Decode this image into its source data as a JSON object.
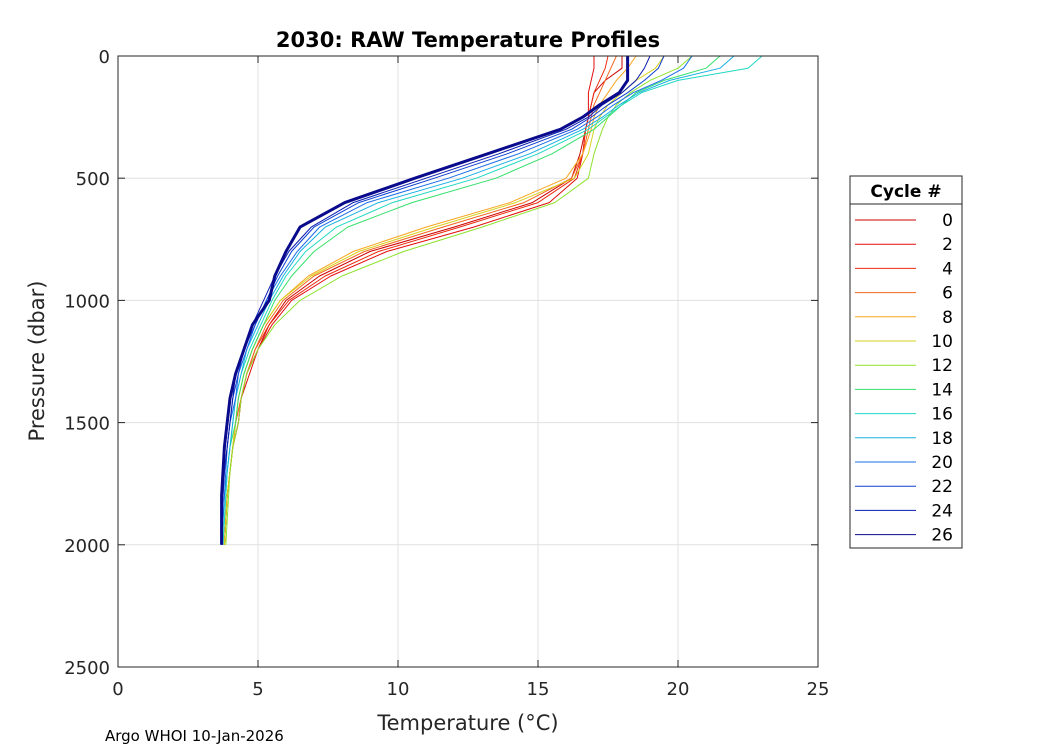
{
  "chart_data": {
    "type": "line",
    "title": "2030: RAW Temperature Profiles",
    "xlabel": "Temperature (",
    "xlabel_unit": "°C)",
    "ylabel": "Pressure (dbar)",
    "xlim": [
      0,
      25
    ],
    "ylim": [
      0,
      2500
    ],
    "y_reversed": true,
    "x_ticks": [
      0,
      5,
      10,
      15,
      20,
      25
    ],
    "y_ticks": [
      0,
      500,
      1000,
      1500,
      2000,
      2500
    ],
    "x_tick_labels": [
      "0",
      "5",
      "10",
      "15",
      "20",
      "25"
    ],
    "y_tick_labels": [
      "0",
      "500",
      "1000",
      "1500",
      "2000",
      "2500"
    ],
    "grid": true,
    "legend": {
      "title": "Cycle #",
      "placement": "right"
    },
    "footer": "Argo WHOI 10-Jan-2026",
    "pressure": [
      0,
      50,
      100,
      150,
      200,
      250,
      300,
      400,
      500,
      600,
      700,
      800,
      900,
      1000,
      1100,
      1200,
      1300,
      1400,
      1500,
      1600,
      1700,
      1800,
      1900,
      2000
    ],
    "series": [
      {
        "name": "0",
        "color": "#cc0000",
        "width": 1,
        "temps": [
          18.0,
          18.0,
          17.4,
          17.0,
          16.9,
          16.8,
          16.7,
          16.5,
          16.2,
          14.8,
          12.0,
          9.0,
          7.2,
          6.0,
          5.4,
          5.0,
          4.6,
          4.4,
          4.3,
          4.1,
          4.0,
          3.9,
          3.85,
          3.8
        ]
      },
      {
        "name": "2",
        "color": "#e30d0d",
        "width": 1,
        "temps": [
          17.0,
          17.0,
          16.9,
          16.8,
          16.8,
          16.8,
          16.7,
          16.6,
          16.4,
          15.4,
          12.7,
          9.6,
          7.6,
          6.2,
          5.5,
          5.0,
          4.7,
          4.4,
          4.3,
          4.1,
          4.0,
          3.9,
          3.85,
          3.8
        ]
      },
      {
        "name": "4",
        "color": "#ee2a0f",
        "width": 1,
        "temps": [
          17.5,
          17.4,
          17.2,
          17.0,
          16.9,
          16.8,
          16.7,
          16.6,
          16.3,
          15.0,
          12.2,
          9.3,
          7.4,
          6.1,
          5.4,
          4.9,
          4.6,
          4.4,
          4.2,
          4.1,
          4.0,
          3.9,
          3.85,
          3.8
        ]
      },
      {
        "name": "6",
        "color": "#f5651e",
        "width": 1,
        "temps": [
          17.8,
          17.6,
          17.4,
          17.2,
          17.0,
          16.9,
          16.8,
          16.6,
          16.2,
          14.5,
          11.6,
          8.8,
          7.0,
          5.9,
          5.3,
          4.9,
          4.6,
          4.4,
          4.2,
          4.1,
          4.0,
          3.9,
          3.85,
          3.8
        ]
      },
      {
        "name": "8",
        "color": "#f8a51f",
        "width": 1,
        "temps": [
          18.5,
          18.2,
          17.8,
          17.5,
          17.2,
          17.0,
          16.9,
          16.6,
          16.0,
          14.0,
          11.0,
          8.4,
          6.8,
          5.8,
          5.2,
          4.8,
          4.5,
          4.3,
          4.2,
          4.1,
          4.0,
          3.9,
          3.85,
          3.8
        ]
      },
      {
        "name": "10",
        "color": "#d6d21c",
        "width": 1,
        "temps": [
          19.5,
          19.2,
          18.5,
          18.0,
          17.5,
          17.2,
          17.0,
          16.8,
          16.3,
          14.2,
          11.3,
          8.6,
          6.9,
          5.8,
          5.2,
          4.8,
          4.5,
          4.3,
          4.2,
          4.1,
          4.0,
          3.9,
          3.85,
          3.8
        ]
      },
      {
        "name": "12",
        "color": "#8ee22d",
        "width": 1,
        "temps": [
          20.5,
          20.0,
          19.0,
          18.3,
          17.8,
          17.5,
          17.3,
          17.0,
          16.8,
          15.6,
          13.0,
          10.2,
          8.0,
          6.5,
          5.6,
          5.0,
          4.6,
          4.4,
          4.3,
          4.1,
          4.0,
          3.95,
          3.9,
          3.85
        ]
      },
      {
        "name": "14",
        "color": "#34e06a",
        "width": 1,
        "temps": [
          21.5,
          21.0,
          19.5,
          18.5,
          18.0,
          17.5,
          17.0,
          15.5,
          13.5,
          10.5,
          8.2,
          7.0,
          6.2,
          5.6,
          5.2,
          4.8,
          4.5,
          4.3,
          4.2,
          4.0,
          3.9,
          3.85,
          3.8,
          3.75
        ]
      },
      {
        "name": "16",
        "color": "#1fd8c2",
        "width": 1,
        "temps": [
          23.0,
          22.5,
          20.0,
          18.7,
          18.0,
          17.4,
          16.8,
          15.0,
          12.8,
          9.8,
          7.8,
          6.7,
          6.0,
          5.5,
          5.1,
          4.7,
          4.4,
          4.2,
          4.1,
          4.0,
          3.9,
          3.85,
          3.8,
          3.75
        ]
      },
      {
        "name": "18",
        "color": "#17b0e3",
        "width": 1,
        "temps": [
          22.0,
          21.5,
          19.7,
          18.6,
          17.9,
          17.3,
          16.6,
          14.7,
          12.3,
          9.3,
          7.4,
          6.5,
          5.9,
          5.4,
          5.0,
          4.6,
          4.4,
          4.2,
          4.1,
          4.0,
          3.9,
          3.8,
          3.75,
          3.7
        ]
      },
      {
        "name": "20",
        "color": "#1a6ee8",
        "width": 1,
        "temps": [
          20.5,
          20.2,
          19.4,
          18.4,
          17.7,
          17.1,
          16.4,
          14.3,
          11.8,
          8.9,
          7.2,
          6.4,
          5.8,
          5.3,
          4.9,
          4.6,
          4.3,
          4.2,
          4.0,
          3.9,
          3.85,
          3.8,
          3.75,
          3.7
        ]
      },
      {
        "name": "22",
        "color": "#0d3fd2",
        "width": 1,
        "temps": [
          19.5,
          19.3,
          18.8,
          18.2,
          17.5,
          16.9,
          16.2,
          13.9,
          11.3,
          8.6,
          7.0,
          6.2,
          5.7,
          5.3,
          4.9,
          4.5,
          4.3,
          4.1,
          4.0,
          3.9,
          3.8,
          3.75,
          3.7,
          3.7
        ]
      },
      {
        "name": "24",
        "color": "#0a1cb0",
        "width": 1,
        "temps": [
          19.0,
          18.8,
          18.5,
          18.0,
          17.3,
          16.8,
          16.0,
          13.6,
          11.0,
          8.4,
          6.9,
          6.1,
          5.6,
          5.2,
          4.8,
          4.5,
          4.2,
          4.1,
          4.0,
          3.9,
          3.8,
          3.75,
          3.7,
          3.7
        ]
      },
      {
        "name": "26",
        "color": "#0a0a8c",
        "width": 3,
        "temps": [
          18.2,
          18.2,
          18.2,
          17.9,
          17.2,
          16.6,
          15.8,
          13.2,
          10.6,
          8.1,
          6.5,
          6.0,
          5.6,
          5.4,
          4.8,
          4.5,
          4.2,
          4.0,
          3.9,
          3.8,
          3.75,
          3.7,
          3.7,
          3.7
        ]
      }
    ]
  }
}
